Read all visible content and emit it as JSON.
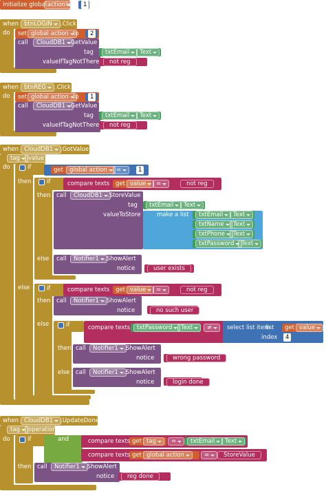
{
  "blocks": [
    [
      "initialize global",
      "action",
      "to",
      "1"
    ],
    [
      "when",
      "btnLOGIN",
      ".Click",
      "do",
      "set",
      "global action",
      "to",
      "2",
      "call",
      "CloudDB1",
      ".GetValue",
      "tag",
      "txtEmail",
      "Text",
      "valueIfTagNotThere",
      "not reg"
    ],
    [
      "when",
      "btnREG",
      ".Click",
      "do",
      "set",
      "global action",
      "to",
      "1",
      "call",
      "CloudDB1",
      ".GetValue",
      "tag",
      "txtEmail",
      "Text",
      "valueIfTagNotThere",
      "not reg"
    ],
    [
      "when",
      "CloudDB1",
      ".GotValue",
      "tag",
      "value",
      "do",
      "if",
      "get",
      "global action",
      "=",
      "1",
      "then",
      "if",
      "compare texts",
      "get",
      "value",
      "=",
      "not reg",
      "then",
      "call",
      "CloudDB1",
      ".StoreValue",
      "tag",
      "txtEmail",
      "Text",
      "valueToStore",
      "make a list",
      "txtEmail",
      "Text",
      "txtName",
      "Text",
      "txtPhone",
      "Text",
      "txtPassword",
      "Text",
      "else",
      "call",
      "Notifier1",
      ".ShowAlert",
      "notice",
      "user exists",
      "else",
      "if",
      "compare texts",
      "get",
      "value",
      "=",
      "not reg",
      "then",
      "call",
      "Notifier1",
      ".ShowAlert",
      "notice",
      "no such user",
      "else",
      "if",
      "compare texts",
      "txtPassword",
      "Text",
      "≠",
      "select list item",
      "list",
      "get",
      "value",
      "index",
      "4",
      "then",
      "call",
      "Notifier1",
      ".ShowAlert",
      "notice",
      "wrong password",
      "else",
      "call",
      "Notifier1",
      ".ShowAlert",
      "notice",
      "login done"
    ],
    [
      "when",
      "CloudDB1",
      ".UpdateDone",
      "tag",
      "operation",
      "do",
      "if",
      "and",
      "compare texts",
      "get",
      "tag",
      "=",
      "txtEmail",
      "Text",
      "compare texts",
      "get",
      "global action",
      "=",
      "StoreValue",
      "then",
      "call",
      "Notifier1",
      ".ShowAlert",
      "notice",
      "reg done"
    ]
  ]
}
